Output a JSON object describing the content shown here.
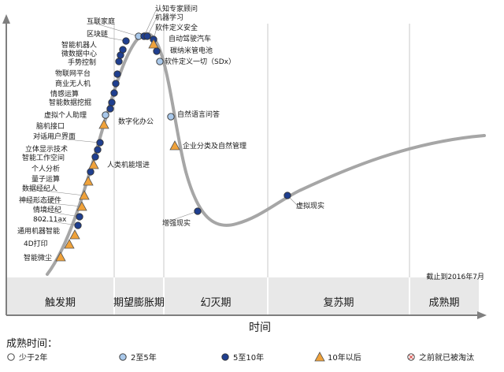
{
  "chart_data": {
    "type": "scatter",
    "title": "",
    "xlabel": "时间",
    "ylabel": "",
    "note": "截止到2016年7月",
    "phases": [
      "触发期",
      "期望膨胀期",
      "幻灭期",
      "复苏期",
      "成熟期"
    ],
    "legend": {
      "title": "成熟时间：",
      "items": [
        {
          "key": "lt2",
          "label": "少于2年",
          "marker": "circle-white"
        },
        {
          "key": "2to5",
          "label": "2至5年",
          "marker": "circle-lightblue"
        },
        {
          "key": "5to10",
          "label": "5至10年",
          "marker": "circle-darkblue"
        },
        {
          "key": "gt10",
          "label": "10年以后",
          "marker": "triangle-orange"
        },
        {
          "key": "obsolete",
          "label": "之前就已被淘汰",
          "marker": "circle-x"
        }
      ]
    },
    "colors": {
      "curve": "#a6a6a6",
      "white": "#ffffff",
      "lightblue": "#a9c8ea",
      "darkblue": "#1f3f8f",
      "orange": "#f0a23a",
      "axis": "#7f7f7f",
      "phase_bg": "#e8e8e8",
      "divider": "#c8c8c8",
      "obsolete": "#d9534f"
    },
    "points": [
      {
        "label": "智能微尘",
        "cat": "gt10"
      },
      {
        "label": "4D打印",
        "cat": "gt10"
      },
      {
        "label": "通用机器智能",
        "cat": "gt10"
      },
      {
        "label": "802.11ax",
        "cat": "5to10"
      },
      {
        "label": "情境经纪",
        "cat": "5to10"
      },
      {
        "label": "神经形态硬件",
        "cat": "gt10"
      },
      {
        "label": "数据经纪人",
        "cat": "gt10"
      },
      {
        "label": "量子运算",
        "cat": "gt10"
      },
      {
        "label": "个人分析",
        "cat": "5to10"
      },
      {
        "label": "人类机能增进",
        "cat": "gt10"
      },
      {
        "label": "智能工作空间",
        "cat": "5to10"
      },
      {
        "label": "立体显示技术",
        "cat": "5to10"
      },
      {
        "label": "对话用户界面",
        "cat": "5to10"
      },
      {
        "label": "脑机接口",
        "cat": "gt10"
      },
      {
        "label": "虚拟个人助理",
        "cat": "2to5"
      },
      {
        "label": "数字化办公",
        "cat": "5to10"
      },
      {
        "label": "智能数据挖掘",
        "cat": "5to10"
      },
      {
        "label": "情感运算",
        "cat": "5to10"
      },
      {
        "label": "商业无人机",
        "cat": "5to10"
      },
      {
        "label": "物联网平台",
        "cat": "5to10"
      },
      {
        "label": "手势控制",
        "cat": "5to10"
      },
      {
        "label": "微数据中心",
        "cat": "5to10"
      },
      {
        "label": "智能机器人",
        "cat": "5to10"
      },
      {
        "label": "区块链",
        "cat": "5to10"
      },
      {
        "label": "互联家庭",
        "cat": "2to5"
      },
      {
        "label": "认知专家顾问",
        "cat": "5to10"
      },
      {
        "label": "机器学习",
        "cat": "5to10"
      },
      {
        "label": "软件定义安全",
        "cat": "5to10"
      },
      {
        "label": "自动驾驶汽车",
        "cat": "gt10"
      },
      {
        "label": "碳纳米管电池",
        "cat": "5to10"
      },
      {
        "label": "软件定义一切（SDx）",
        "cat": "2to5"
      },
      {
        "label": "自然语言问答",
        "cat": "2to5"
      },
      {
        "label": "企业分类及自然管理",
        "cat": "gt10"
      },
      {
        "label": "增强现实",
        "cat": "5to10"
      },
      {
        "label": "虚拟现实",
        "cat": "5to10"
      }
    ]
  }
}
